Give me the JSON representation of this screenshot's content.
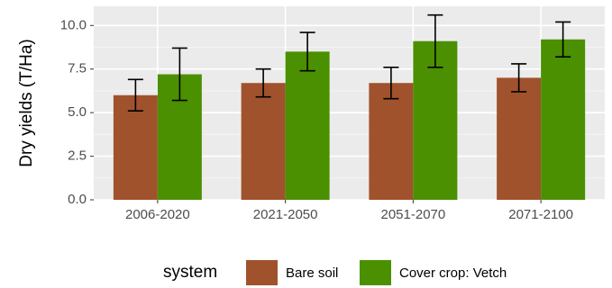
{
  "chart_data": {
    "type": "bar",
    "categories": [
      "2006-2020",
      "2021-2050",
      "2051-2070",
      "2071-2100"
    ],
    "ylabel": "Dry yields (T/Ha)",
    "xlabel": "",
    "ylim": [
      0,
      11.1
    ],
    "y_ticks": [
      "0.0",
      "2.5",
      "5.0",
      "7.5",
      "10.0"
    ],
    "grid": true,
    "legend_title": "system",
    "legend_position": "bottom",
    "series": [
      {
        "name": "Bare soil",
        "color": "#A0522D",
        "values": [
          6.0,
          6.7,
          6.7,
          7.0
        ],
        "error_low": [
          5.1,
          5.9,
          5.8,
          6.2
        ],
        "error_high": [
          6.9,
          7.5,
          7.6,
          7.8
        ]
      },
      {
        "name": "Cover crop: Vetch",
        "color": "#4B9000",
        "values": [
          7.2,
          8.5,
          9.1,
          9.2
        ],
        "error_low": [
          5.7,
          7.4,
          7.6,
          8.2
        ],
        "error_high": [
          8.7,
          9.6,
          10.6,
          10.2
        ]
      }
    ]
  }
}
